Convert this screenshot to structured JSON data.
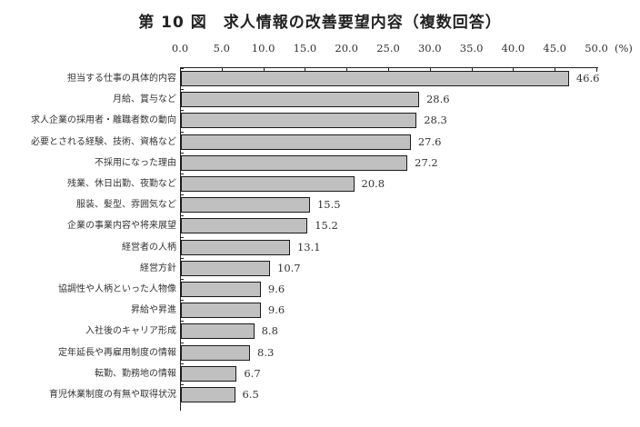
{
  "title": "第 10 図　求人情報の改善要望内容（複数回答）",
  "axis": {
    "ticks": [
      "0.0",
      "5.0",
      "10.0",
      "15.0",
      "20.0",
      "25.0",
      "30.0",
      "35.0",
      "40.0",
      "45.0",
      "50.0"
    ],
    "unit": "(%)"
  },
  "chart_data": {
    "type": "bar",
    "orientation": "horizontal",
    "title": "第 10 図　求人情報の改善要望内容（複数回答）",
    "xlabel": "(%)",
    "ylabel": "",
    "xlim": [
      0,
      50
    ],
    "grid": false,
    "categories": [
      "担当する仕事の具体的内容",
      "月給、賞与など",
      "求人企業の採用者・離職者数の動向",
      "必要とされる経験、技術、資格など",
      "不採用になった理由",
      "残業、休日出勤、夜勤など",
      "服装、髪型、雰囲気など",
      "企業の事業内容や将来展望",
      "経営者の人柄",
      "経営方針",
      "協調性や人柄といった人物像",
      "昇給や昇進",
      "入社後のキャリア形成",
      "定年延長や再雇用制度の情報",
      "転勤、勤務地の情報",
      "育児休業制度の有無や取得状況"
    ],
    "values": [
      46.6,
      28.6,
      28.3,
      27.6,
      27.2,
      20.8,
      15.5,
      15.2,
      13.1,
      10.7,
      9.6,
      9.6,
      8.8,
      8.3,
      6.7,
      6.5
    ],
    "labels": [
      "46.6",
      "28.6",
      "28.3",
      "27.6",
      "27.2",
      "20.8",
      "15.5",
      "15.2",
      "13.1",
      "10.7",
      "9.6",
      "9.6",
      "8.8",
      "8.3",
      "6.7",
      "6.5"
    ]
  },
  "colors": {
    "bar_fill": "#c0c0c0",
    "bar_border": "#1a1a1a"
  }
}
